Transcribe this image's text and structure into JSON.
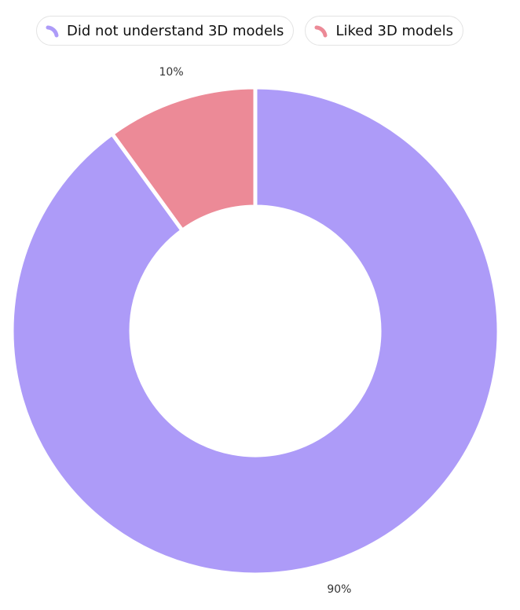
{
  "chart_data": {
    "type": "donut",
    "categories": [
      "Did not understand 3D models",
      "Liked 3D models"
    ],
    "values": [
      90,
      10
    ],
    "value_labels": [
      "90%",
      "10%"
    ],
    "colors": [
      "#ad9bf8",
      "#ec8a97"
    ]
  }
}
